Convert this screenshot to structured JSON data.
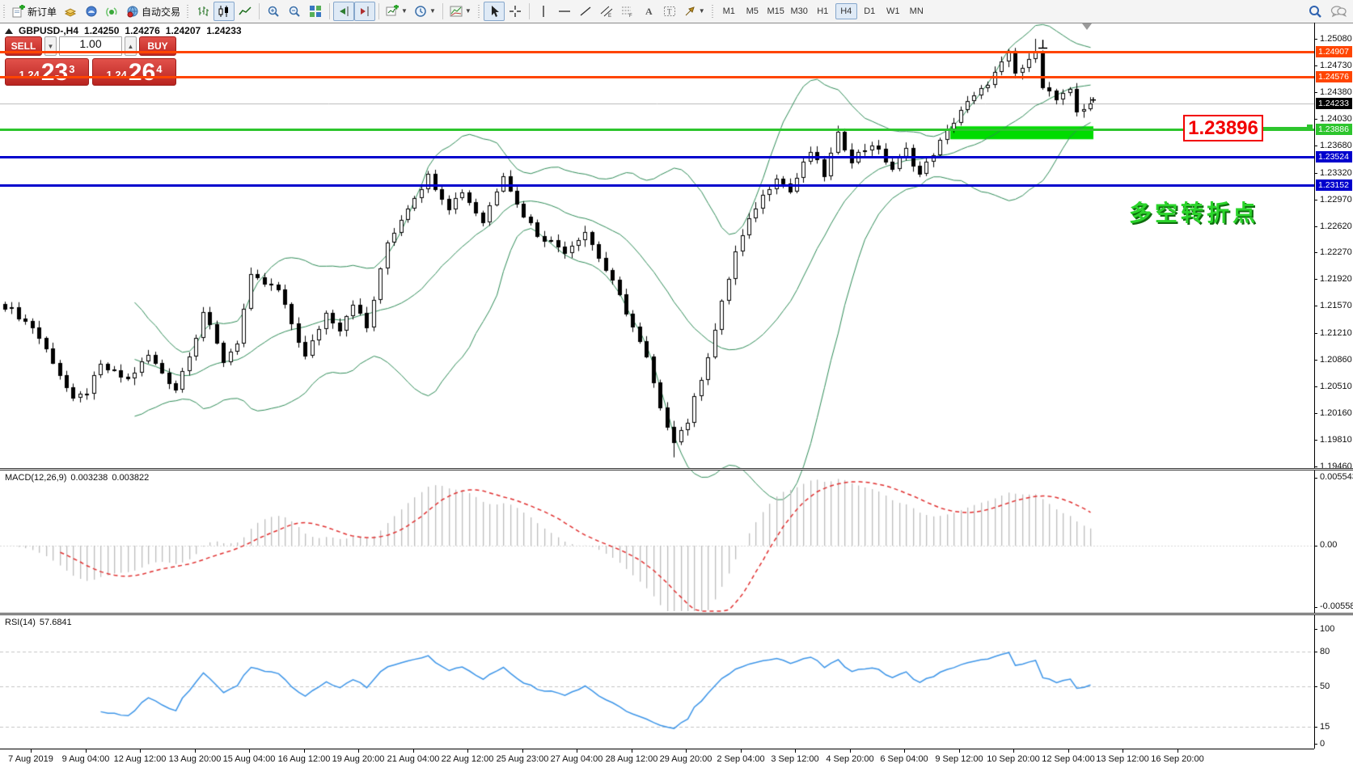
{
  "app": {
    "toolbar": {
      "new_order_label": "新订单",
      "auto_trading_label": "自动交易",
      "timeframes": [
        "M1",
        "M5",
        "M15",
        "M30",
        "H1",
        "H4",
        "D1",
        "W1",
        "MN"
      ],
      "active_timeframe": "H4",
      "spinner_down": "▼",
      "spinner_up": "▲"
    }
  },
  "chart": {
    "header": {
      "symbol": "GBPUSD-,H4",
      "open": "1.24250",
      "high": "1.24276",
      "low": "1.24207",
      "close": "1.24233"
    },
    "trade_panel": {
      "sell_label": "SELL",
      "buy_label": "BUY",
      "volume": "1.00",
      "sell_price": {
        "prefix": "1.24",
        "big": "23",
        "sup": "3"
      },
      "buy_price": {
        "prefix": "1.24",
        "big": "26",
        "sup": "4"
      }
    },
    "price_axis_ticks": [
      "1.25080",
      "1.24730",
      "1.24380",
      "1.24030",
      "1.23680",
      "1.23320",
      "1.22970",
      "1.22620",
      "1.22270",
      "1.21920",
      "1.21570",
      "1.21210",
      "1.20860",
      "1.20510",
      "1.20160",
      "1.19810",
      "1.19460"
    ],
    "levels": [
      {
        "value": "1.24907",
        "color": "#FF4500",
        "kind": "hline"
      },
      {
        "value": "1.24576",
        "color": "#FF4500",
        "kind": "hline"
      },
      {
        "value": "1.24233",
        "color": "#000000",
        "kind": "bid"
      },
      {
        "value": "1.23886",
        "color": "#2DC52D",
        "kind": "hline"
      },
      {
        "value": "1.23524",
        "color": "#0000CD",
        "kind": "hline"
      },
      {
        "value": "1.23152",
        "color": "#0000CD",
        "kind": "hline"
      }
    ],
    "annotations": {
      "price_label": {
        "text": "1.23896",
        "color": "#F20000"
      },
      "note_text": {
        "text": "多空转折点",
        "color": "#2BD42B"
      },
      "zone_box": {
        "color": "#00DC00",
        "price_top": 1.2393,
        "price_bottom": 1.2376,
        "bar_start": 139,
        "bar_end": 159
      }
    }
  },
  "chart_data": {
    "type": "candlestick",
    "symbol": "GBPUSD-",
    "timeframe": "H4",
    "bar_count": 160,
    "price_range": {
      "top": 1.2508,
      "bottom": 1.1946
    },
    "close_keypoints": [
      [
        0,
        1.2158
      ],
      [
        4,
        1.213
      ],
      [
        7,
        1.2085
      ],
      [
        10,
        1.2032
      ],
      [
        12,
        1.2045
      ],
      [
        14,
        1.2078
      ],
      [
        18,
        1.206
      ],
      [
        21,
        1.2092
      ],
      [
        25,
        1.2048
      ],
      [
        28,
        1.2118
      ],
      [
        29,
        1.215
      ],
      [
        32,
        1.2085
      ],
      [
        34,
        1.211
      ],
      [
        36,
        1.2195
      ],
      [
        40,
        1.2178
      ],
      [
        44,
        1.209
      ],
      [
        47,
        1.2148
      ],
      [
        49,
        1.2128
      ],
      [
        51,
        1.2162
      ],
      [
        53,
        1.2128
      ],
      [
        56,
        1.224
      ],
      [
        59,
        1.2288
      ],
      [
        62,
        1.2328
      ],
      [
        65,
        1.2288
      ],
      [
        67,
        1.2308
      ],
      [
        70,
        1.2268
      ],
      [
        73,
        1.2332
      ],
      [
        75,
        1.229
      ],
      [
        78,
        1.2252
      ],
      [
        82,
        1.223
      ],
      [
        85,
        1.2255
      ],
      [
        89,
        1.2188
      ],
      [
        91,
        1.215
      ],
      [
        94,
        1.2088
      ],
      [
        96,
        1.202
      ],
      [
        98,
        1.1982
      ],
      [
        100,
        1.2005
      ],
      [
        103,
        1.2092
      ],
      [
        107,
        1.2228
      ],
      [
        110,
        1.2288
      ],
      [
        113,
        1.2328
      ],
      [
        115,
        1.2308
      ],
      [
        118,
        1.236
      ],
      [
        120,
        1.233
      ],
      [
        122,
        1.2382
      ],
      [
        124,
        1.235
      ],
      [
        127,
        1.237
      ],
      [
        130,
        1.2338
      ],
      [
        132,
        1.2362
      ],
      [
        134,
        1.233
      ],
      [
        138,
        1.2386
      ],
      [
        140,
        1.2415
      ],
      [
        143,
        1.244
      ],
      [
        145,
        1.2462
      ],
      [
        147,
        1.2488
      ],
      [
        148,
        1.2462
      ],
      [
        150,
        1.2478
      ],
      [
        151,
        1.2495
      ],
      [
        152,
        1.2448
      ],
      [
        154,
        1.2428
      ],
      [
        156,
        1.2438
      ],
      [
        157,
        1.2412
      ],
      [
        159,
        1.24233
      ]
    ],
    "wick_overrides": [
      {
        "i": 98,
        "low": 1.1958
      },
      {
        "i": 151,
        "high": 1.2508
      }
    ],
    "last_close": 1.24233,
    "time_axis": {
      "labels": [
        "7 Aug 2019",
        "9 Aug 04:00",
        "12 Aug 12:00",
        "13 Aug 20:00",
        "15 Aug 04:00",
        "16 Aug 12:00",
        "19 Aug 20:00",
        "21 Aug 04:00",
        "22 Aug 12:00",
        "25 Aug 23:00",
        "27 Aug 04:00",
        "28 Aug 12:00",
        "29 Aug 20:00",
        "2 Sep 04:00",
        "3 Sep 12:00",
        "4 Sep 20:00",
        "6 Sep 04:00",
        "9 Sep 12:00",
        "10 Sep 20:00",
        "12 Sep 04:00",
        "13 Sep 12:00",
        "16 Sep 20:00"
      ]
    },
    "indicators": {
      "bollinger": {
        "period": 20,
        "deviation": 2,
        "color": "#2E8B57"
      },
      "macd": {
        "label": "MACD(12,26,9)",
        "value_main": "0.003238",
        "value_signal": "0.003822",
        "axis_labels": [
          "0.005543",
          "0.00",
          "-0.005583"
        ],
        "bar_color": "#BDBDBD",
        "signal_color": "#E03030"
      },
      "rsi": {
        "label": "RSI(14)",
        "value": "57.6841",
        "levels": [
          80,
          50,
          15
        ],
        "axis_labels": [
          "100",
          "80",
          "50",
          "15",
          "0"
        ],
        "line_color": "#3D95E8"
      }
    },
    "legend_position": "top-left",
    "grid": false
  }
}
